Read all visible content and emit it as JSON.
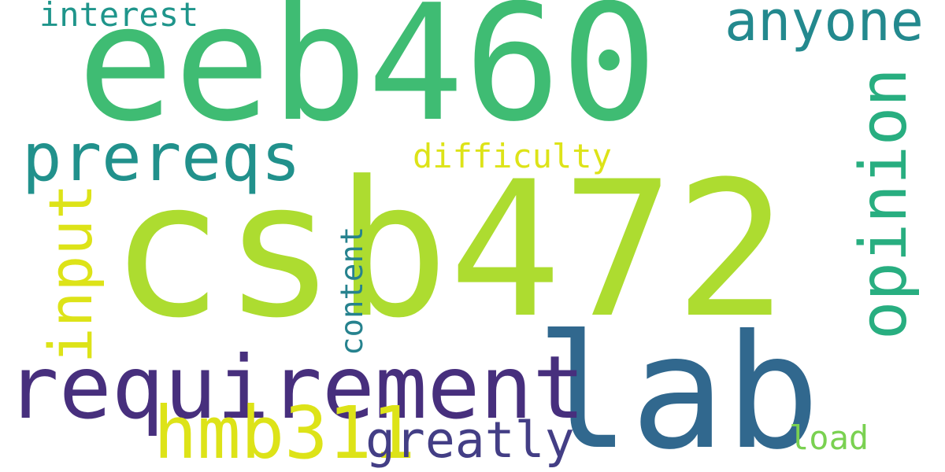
{
  "words": {
    "csb472": {
      "text": "csb472",
      "color": "#addc30"
    },
    "eeb460": {
      "text": "eeb460",
      "color": "#3fbc73"
    },
    "lab": {
      "text": "lab",
      "color": "#31688e"
    },
    "requirement": {
      "text": "requirement",
      "color": "#472f7d"
    },
    "prereqs": {
      "text": "prereqs",
      "color": "#21918c"
    },
    "anyone": {
      "text": "anyone",
      "color": "#23898e"
    },
    "opinion": {
      "text": "opinion",
      "color": "#28ae80"
    },
    "input": {
      "text": "input",
      "color": "#dde318"
    },
    "hmb311": {
      "text": "hmb311",
      "color": "#dde318"
    },
    "greatly": {
      "text": "greatly",
      "color": "#433e85"
    },
    "content": {
      "text": "content",
      "color": "#26828e"
    },
    "difficulty": {
      "text": "difficulty",
      "color": "#dde318"
    },
    "interest": {
      "text": "interest",
      "color": "#1f958b"
    },
    "load": {
      "text": "load",
      "color": "#7ad151"
    }
  }
}
